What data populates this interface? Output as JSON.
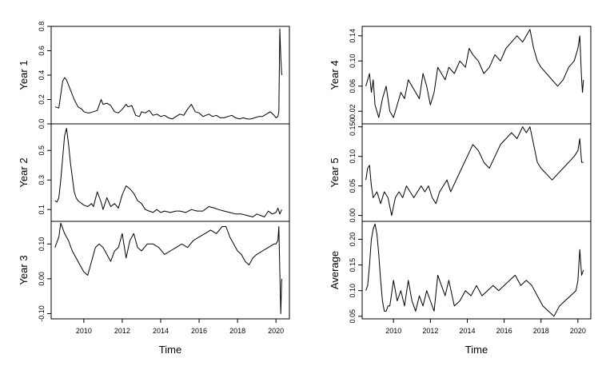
{
  "chart_data": [
    {
      "type": "line",
      "column": "left",
      "xlabel": "Time",
      "xlim": [
        2008.3,
        2020.7
      ],
      "xticks": [
        2010,
        2012,
        2014,
        2016,
        2018,
        2020
      ],
      "panels": [
        {
          "ylabel": "Year 1",
          "ylim": [
            0.0,
            0.8
          ],
          "yticks": [
            0.0,
            0.2,
            0.4,
            0.6,
            0.8
          ],
          "ytick_labels": [
            "0.0",
            "0.2",
            "0.4",
            "0.6",
            "0.8"
          ],
          "series": [
            {
              "x": [
                2008.5,
                2008.7,
                2008.9,
                2009.0,
                2009.1,
                2009.3,
                2009.5,
                2009.7,
                2009.9,
                2010.0,
                2010.2,
                2010.3,
                2010.5,
                2010.7,
                2010.9,
                2011.0,
                2011.2,
                2011.4,
                2011.6,
                2011.8,
                2012.0,
                2012.2,
                2012.3,
                2012.5,
                2012.7,
                2012.9,
                2013.0,
                2013.2,
                2013.4,
                2013.6,
                2013.8,
                2014.0,
                2014.2,
                2014.4,
                2014.6,
                2014.8,
                2015.0,
                2015.2,
                2015.4,
                2015.6,
                2015.8,
                2016.0,
                2016.2,
                2016.5,
                2016.7,
                2016.9,
                2017.1,
                2017.3,
                2017.5,
                2017.7,
                2017.9,
                2018.1,
                2018.3,
                2018.5,
                2018.7,
                2018.9,
                2019.1,
                2019.3,
                2019.5,
                2019.7,
                2019.9,
                2020.0,
                2020.1,
                2020.15,
                2020.2,
                2020.25,
                2020.3
              ],
              "y": [
                0.14,
                0.13,
                0.35,
                0.38,
                0.36,
                0.28,
                0.2,
                0.14,
                0.12,
                0.1,
                0.09,
                0.09,
                0.1,
                0.11,
                0.2,
                0.16,
                0.17,
                0.15,
                0.1,
                0.09,
                0.12,
                0.16,
                0.14,
                0.15,
                0.07,
                0.06,
                0.1,
                0.09,
                0.11,
                0.07,
                0.08,
                0.06,
                0.07,
                0.05,
                0.04,
                0.06,
                0.08,
                0.07,
                0.12,
                0.16,
                0.1,
                0.09,
                0.06,
                0.08,
                0.06,
                0.07,
                0.05,
                0.05,
                0.06,
                0.07,
                0.05,
                0.04,
                0.05,
                0.04,
                0.04,
                0.05,
                0.06,
                0.06,
                0.08,
                0.1,
                0.07,
                0.05,
                0.06,
                0.1,
                0.78,
                0.55,
                0.4
              ]
            }
          ]
        },
        {
          "ylabel": "Year 2",
          "ylim": [
            0.02,
            0.68
          ],
          "yticks": [
            0.1,
            0.3,
            0.5
          ],
          "ytick_labels": [
            "0.1",
            "0.3",
            "0.5"
          ],
          "series": [
            {
              "x": [
                2008.5,
                2008.6,
                2008.7,
                2008.8,
                2008.9,
                2009.0,
                2009.1,
                2009.2,
                2009.3,
                2009.4,
                2009.5,
                2009.6,
                2009.7,
                2009.8,
                2010.0,
                2010.2,
                2010.4,
                2010.5,
                2010.7,
                2010.9,
                2011.0,
                2011.2,
                2011.4,
                2011.6,
                2011.8,
                2012.0,
                2012.1,
                2012.2,
                2012.4,
                2012.6,
                2012.8,
                2013.0,
                2013.2,
                2013.4,
                2013.6,
                2013.8,
                2014.0,
                2014.2,
                2014.5,
                2014.8,
                2015.0,
                2015.3,
                2015.6,
                2015.9,
                2016.2,
                2016.5,
                2016.8,
                2017.0,
                2017.3,
                2017.6,
                2017.9,
                2018.2,
                2018.5,
                2018.8,
                2019.0,
                2019.2,
                2019.4,
                2019.6,
                2019.8,
                2020.0,
                2020.1,
                2020.2,
                2020.3
              ],
              "y": [
                0.16,
                0.15,
                0.18,
                0.3,
                0.45,
                0.6,
                0.65,
                0.55,
                0.42,
                0.32,
                0.22,
                0.18,
                0.16,
                0.15,
                0.13,
                0.12,
                0.14,
                0.12,
                0.22,
                0.15,
                0.1,
                0.18,
                0.12,
                0.14,
                0.11,
                0.2,
                0.23,
                0.26,
                0.24,
                0.21,
                0.16,
                0.14,
                0.1,
                0.09,
                0.08,
                0.1,
                0.08,
                0.09,
                0.08,
                0.09,
                0.09,
                0.08,
                0.1,
                0.09,
                0.09,
                0.12,
                0.11,
                0.1,
                0.09,
                0.08,
                0.07,
                0.07,
                0.06,
                0.05,
                0.07,
                0.06,
                0.05,
                0.09,
                0.07,
                0.08,
                0.11,
                0.07,
                0.1
              ]
            }
          ]
        },
        {
          "ylabel": "Year 3",
          "ylim": [
            -0.115,
            0.165
          ],
          "yticks": [
            -0.1,
            0.0,
            0.1
          ],
          "ytick_labels": [
            "-0.10",
            "0.00",
            "0.10"
          ],
          "series": [
            {
              "x": [
                2008.5,
                2008.7,
                2008.8,
                2009.0,
                2009.2,
                2009.4,
                2009.6,
                2009.8,
                2010.0,
                2010.2,
                2010.4,
                2010.6,
                2010.8,
                2011.0,
                2011.2,
                2011.4,
                2011.6,
                2011.8,
                2012.0,
                2012.2,
                2012.4,
                2012.6,
                2012.8,
                2013.0,
                2013.3,
                2013.6,
                2013.9,
                2014.2,
                2014.5,
                2014.8,
                2015.1,
                2015.4,
                2015.7,
                2016.0,
                2016.3,
                2016.6,
                2016.9,
                2017.2,
                2017.4,
                2017.6,
                2017.8,
                2018.0,
                2018.2,
                2018.4,
                2018.6,
                2018.8,
                2019.0,
                2019.3,
                2019.6,
                2019.9,
                2020.0,
                2020.1,
                2020.15,
                2020.2,
                2020.25,
                2020.3
              ],
              "y": [
                0.09,
                0.12,
                0.16,
                0.13,
                0.11,
                0.08,
                0.06,
                0.04,
                0.02,
                0.01,
                0.05,
                0.09,
                0.1,
                0.09,
                0.07,
                0.05,
                0.08,
                0.09,
                0.13,
                0.06,
                0.11,
                0.13,
                0.09,
                0.08,
                0.1,
                0.1,
                0.09,
                0.07,
                0.08,
                0.09,
                0.1,
                0.09,
                0.11,
                0.12,
                0.13,
                0.14,
                0.13,
                0.15,
                0.15,
                0.12,
                0.1,
                0.08,
                0.07,
                0.05,
                0.04,
                0.06,
                0.07,
                0.08,
                0.09,
                0.1,
                0.1,
                0.11,
                0.15,
                0.02,
                -0.1,
                0.0
              ]
            }
          ]
        }
      ]
    },
    {
      "type": "line",
      "column": "right",
      "xlabel": "Time",
      "xlim": [
        2008.3,
        2020.7
      ],
      "xticks": [
        2010,
        2012,
        2014,
        2016,
        2018,
        2020
      ],
      "panels": [
        {
          "ylabel": "Year 4",
          "ylim": [
            0.0,
            0.155
          ],
          "yticks": [
            0.02,
            0.06,
            0.1,
            0.14
          ],
          "ytick_labels": [
            "0.02",
            "0.06",
            "0.10",
            "0.14"
          ],
          "series": [
            {
              "x": [
                2008.5,
                2008.7,
                2008.8,
                2008.9,
                2009.0,
                2009.2,
                2009.4,
                2009.6,
                2009.8,
                2010.0,
                2010.2,
                2010.4,
                2010.6,
                2010.8,
                2011.0,
                2011.2,
                2011.4,
                2011.6,
                2011.8,
                2012.0,
                2012.2,
                2012.4,
                2012.6,
                2012.8,
                2013.0,
                2013.3,
                2013.6,
                2013.9,
                2014.1,
                2014.3,
                2014.6,
                2014.9,
                2015.2,
                2015.5,
                2015.8,
                2016.1,
                2016.4,
                2016.7,
                2017.0,
                2017.2,
                2017.4,
                2017.6,
                2017.8,
                2018.0,
                2018.3,
                2018.6,
                2018.9,
                2019.2,
                2019.5,
                2019.8,
                2020.0,
                2020.1,
                2020.2,
                2020.25,
                2020.3
              ],
              "y": [
                0.06,
                0.08,
                0.05,
                0.07,
                0.03,
                0.01,
                0.04,
                0.06,
                0.02,
                0.01,
                0.03,
                0.05,
                0.04,
                0.07,
                0.06,
                0.05,
                0.04,
                0.08,
                0.06,
                0.03,
                0.05,
                0.09,
                0.08,
                0.07,
                0.09,
                0.08,
                0.1,
                0.09,
                0.12,
                0.11,
                0.1,
                0.08,
                0.09,
                0.11,
                0.1,
                0.12,
                0.13,
                0.14,
                0.13,
                0.14,
                0.15,
                0.12,
                0.1,
                0.09,
                0.08,
                0.07,
                0.06,
                0.07,
                0.09,
                0.1,
                0.12,
                0.14,
                0.07,
                0.05,
                0.07
              ]
            }
          ]
        },
        {
          "ylabel": "Year 5",
          "ylim": [
            -0.01,
            0.155
          ],
          "yticks": [
            0.0,
            0.05,
            0.1,
            0.15
          ],
          "ytick_labels": [
            "0.00",
            "0.05",
            "0.10",
            "0.150"
          ],
          "series": [
            {
              "x": [
                2008.5,
                2008.6,
                2008.7,
                2008.8,
                2008.9,
                2009.1,
                2009.3,
                2009.5,
                2009.7,
                2009.9,
                2010.1,
                2010.3,
                2010.5,
                2010.7,
                2010.9,
                2011.1,
                2011.3,
                2011.5,
                2011.7,
                2011.9,
                2012.1,
                2012.3,
                2012.5,
                2012.7,
                2012.9,
                2013.1,
                2013.4,
                2013.7,
                2014.0,
                2014.3,
                2014.6,
                2014.9,
                2015.2,
                2015.5,
                2015.8,
                2016.1,
                2016.4,
                2016.7,
                2017.0,
                2017.2,
                2017.4,
                2017.6,
                2017.8,
                2018.0,
                2018.3,
                2018.6,
                2018.9,
                2019.2,
                2019.5,
                2019.8,
                2020.0,
                2020.1,
                2020.2,
                2020.3
              ],
              "y": [
                0.06,
                0.08,
                0.085,
                0.05,
                0.03,
                0.04,
                0.02,
                0.04,
                0.03,
                0.0,
                0.03,
                0.04,
                0.03,
                0.05,
                0.04,
                0.03,
                0.04,
                0.05,
                0.04,
                0.05,
                0.03,
                0.02,
                0.04,
                0.05,
                0.06,
                0.04,
                0.06,
                0.08,
                0.1,
                0.12,
                0.11,
                0.09,
                0.08,
                0.1,
                0.12,
                0.13,
                0.14,
                0.13,
                0.15,
                0.14,
                0.15,
                0.12,
                0.09,
                0.08,
                0.07,
                0.06,
                0.07,
                0.08,
                0.09,
                0.1,
                0.11,
                0.13,
                0.09,
                0.09
              ]
            }
          ]
        },
        {
          "ylabel": "Average",
          "ylim": [
            0.045,
            0.235
          ],
          "yticks": [
            0.05,
            0.1,
            0.15,
            0.2
          ],
          "ytick_labels": [
            "0.05",
            "0.10",
            "0.15",
            "0.20"
          ],
          "series": [
            {
              "x": [
                2008.5,
                2008.6,
                2008.7,
                2008.8,
                2008.9,
                2009.0,
                2009.1,
                2009.2,
                2009.3,
                2009.4,
                2009.5,
                2009.6,
                2009.7,
                2009.8,
                2010.0,
                2010.2,
                2010.4,
                2010.6,
                2010.8,
                2011.0,
                2011.2,
                2011.4,
                2011.6,
                2011.8,
                2012.0,
                2012.2,
                2012.4,
                2012.6,
                2012.8,
                2013.0,
                2013.3,
                2013.6,
                2013.9,
                2014.2,
                2014.5,
                2014.8,
                2015.1,
                2015.4,
                2015.7,
                2016.0,
                2016.3,
                2016.6,
                2016.9,
                2017.2,
                2017.5,
                2017.8,
                2018.1,
                2018.4,
                2018.7,
                2019.0,
                2019.3,
                2019.6,
                2019.9,
                2020.0,
                2020.1,
                2020.2,
                2020.3
              ],
              "y": [
                0.1,
                0.11,
                0.15,
                0.2,
                0.22,
                0.23,
                0.21,
                0.17,
                0.12,
                0.08,
                0.06,
                0.06,
                0.07,
                0.07,
                0.12,
                0.08,
                0.1,
                0.07,
                0.12,
                0.08,
                0.06,
                0.09,
                0.07,
                0.1,
                0.08,
                0.06,
                0.13,
                0.11,
                0.09,
                0.12,
                0.07,
                0.08,
                0.1,
                0.09,
                0.11,
                0.09,
                0.1,
                0.11,
                0.1,
                0.11,
                0.12,
                0.13,
                0.11,
                0.12,
                0.11,
                0.09,
                0.07,
                0.06,
                0.05,
                0.07,
                0.08,
                0.09,
                0.1,
                0.12,
                0.18,
                0.13,
                0.14
              ]
            }
          ]
        }
      ]
    }
  ]
}
